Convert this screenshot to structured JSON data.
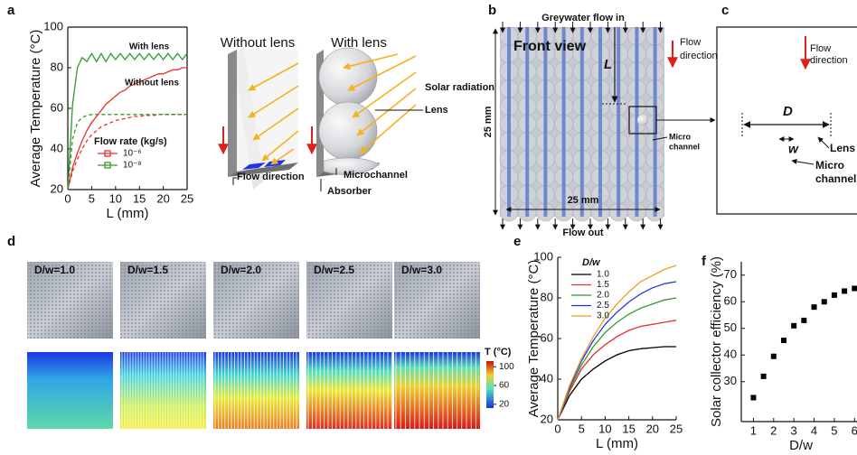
{
  "figure": {
    "panel_labels": [
      "a",
      "b",
      "c",
      "d",
      "e",
      "f"
    ],
    "a": {
      "without_lens": "Without lens",
      "with_lens": "With lens",
      "solar_radiation": "Solar radiation",
      "lens": "Lens",
      "flow_direction": "Flow direction",
      "microchannel": "Microchannel",
      "absorber": "Absorber"
    },
    "b": {
      "flow_in": "Greywater flow in",
      "front_view": "Front view",
      "L": "L",
      "height": "25 mm",
      "width": "25 mm",
      "flow_out": "Flow out",
      "flow_direction": [
        "Flow",
        "direction"
      ],
      "micro_channel": [
        "Micro",
        "channel"
      ]
    },
    "c": {
      "flow_direction": [
        "Flow",
        "direction"
      ],
      "D": "D",
      "w": "w",
      "lens": "Lens",
      "micro_channel": [
        "Micro",
        "channel"
      ]
    },
    "d": {
      "labels": [
        "D/w=1.0",
        "D/w=1.5",
        "D/w=2.0",
        "D/w=2.5",
        "D/w=3.0"
      ],
      "colorbar_title": "T (°C)",
      "colorbar_ticks": [
        100,
        60,
        20
      ],
      "colorbar_lim": [
        12,
        112
      ]
    }
  },
  "chart_data": [
    {
      "type": "line",
      "xlabel": "L (mm)",
      "ylabel": "Average Temperature (°C)",
      "xlim": [
        0,
        25
      ],
      "ylim": [
        20,
        100
      ],
      "xticks": [
        0,
        5,
        10,
        15,
        20,
        25
      ],
      "yticks": [
        20,
        40,
        60,
        80,
        100
      ],
      "annotations": [
        "With lens",
        "Without lens"
      ],
      "legend_title": "Flow rate (kg/s)",
      "legend_marker": "square",
      "x": [
        0,
        1,
        2,
        3,
        4,
        5,
        6,
        7,
        8,
        9,
        10,
        11,
        12,
        13,
        14,
        15,
        16,
        17,
        18,
        19,
        20,
        21,
        22,
        23,
        24,
        25
      ],
      "series": [
        {
          "name": "10⁻⁶",
          "color": "#e8312e",
          "linestyle": "solid",
          "values": [
            20,
            31,
            38,
            44,
            49,
            53,
            56,
            59,
            62,
            64,
            66,
            68,
            69,
            71,
            72,
            73,
            74,
            75,
            76,
            77,
            77,
            78,
            79,
            79,
            80,
            80
          ]
        },
        {
          "name": "10⁻⁸",
          "color": "#2e9a2e",
          "linestyle": "solid",
          "values": [
            20,
            62,
            80,
            85,
            83,
            87,
            83,
            87,
            83,
            87,
            84,
            87,
            84,
            87,
            84,
            87,
            84,
            87,
            84,
            87,
            84,
            87,
            84,
            87,
            84,
            87
          ]
        }
      ],
      "series_without_lens": [
        {
          "color": "#e8312e",
          "linestyle": "dashed",
          "values": [
            20,
            29,
            35,
            40,
            44,
            47,
            49,
            51,
            52,
            53,
            54,
            54.5,
            55,
            55.5,
            56,
            56,
            56.5,
            56.5,
            56.5,
            57,
            57,
            57,
            57,
            57,
            57,
            57
          ]
        },
        {
          "color": "#2e9a2e",
          "linestyle": "dashed",
          "values": [
            20,
            45,
            53,
            55.5,
            56.5,
            57,
            57,
            57,
            57,
            57,
            57,
            57,
            57,
            57,
            57,
            57,
            57,
            57,
            57,
            57,
            57,
            57,
            57,
            57,
            57,
            57
          ]
        }
      ]
    },
    {
      "type": "line",
      "xlabel": "L (mm)",
      "ylabel": "Average Temperature (°C)",
      "xlim": [
        0,
        25
      ],
      "ylim": [
        20,
        100
      ],
      "xticks": [
        0,
        5,
        10,
        15,
        20,
        25
      ],
      "yticks": [
        20,
        40,
        60,
        80,
        100
      ],
      "legend_title": "D/w",
      "legend_marker": "line",
      "x": [
        0,
        2.5,
        5,
        7.5,
        10,
        12.5,
        15,
        17.5,
        20,
        22.5,
        25
      ],
      "series": [
        {
          "name": "1.0",
          "color": "#000000",
          "linestyle": "solid",
          "values": [
            20,
            32,
            40,
            45,
            49,
            52,
            54,
            55,
            55.5,
            56,
            56
          ]
        },
        {
          "name": "1.5",
          "color": "#e8312e",
          "linestyle": "solid",
          "values": [
            20,
            34,
            45,
            52,
            57,
            61,
            64,
            66,
            67,
            68,
            69
          ]
        },
        {
          "name": "2.0",
          "color": "#2e9a2e",
          "linestyle": "solid",
          "values": [
            20,
            35,
            47,
            56,
            63,
            68,
            72,
            75,
            77,
            79,
            80
          ]
        },
        {
          "name": "2.5",
          "color": "#2233ee",
          "linestyle": "solid",
          "values": [
            20,
            36,
            49,
            59,
            67,
            73,
            78,
            82,
            85,
            87,
            88
          ]
        },
        {
          "name": "3.0",
          "color": "#f39a1e",
          "linestyle": "solid",
          "values": [
            20,
            37,
            50,
            61,
            70,
            77,
            83,
            88,
            91,
            94,
            96
          ]
        }
      ]
    },
    {
      "type": "scatter",
      "xlabel": "D/w",
      "ylabel": "Solar collector efficiency (%)",
      "xlim": [
        0.4,
        6.3
      ],
      "ylim": [
        15,
        75
      ],
      "xticks": [
        1,
        2,
        3,
        4,
        5,
        6
      ],
      "yticks": [
        30,
        40,
        50,
        60,
        70
      ],
      "color": "#000000",
      "x": [
        1,
        1.5,
        2,
        2.5,
        3,
        3.5,
        4,
        4.5,
        5,
        5.5,
        6
      ],
      "values": [
        24,
        32,
        39.5,
        45.5,
        51,
        53,
        58,
        60,
        62.5,
        64,
        65
      ]
    }
  ]
}
